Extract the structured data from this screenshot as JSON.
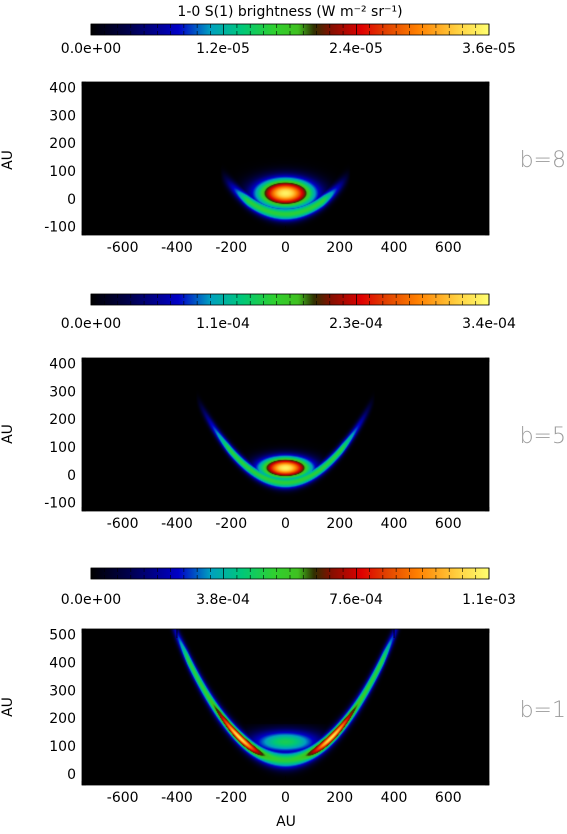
{
  "chart_data": [
    {
      "type": "heatmap",
      "title": "1-0 S(1) brightness (W m⁻² sr⁻¹)",
      "colorbar_ticks": [
        "0.0e+00",
        "1.2e-05",
        "2.4e-05",
        "3.6e-05"
      ],
      "colorbar_max": 3.6e-05,
      "xlabel": "",
      "ylabel": "AU",
      "x_ticks": [
        -600,
        -400,
        -200,
        0,
        200,
        400,
        600
      ],
      "y_ticks": [
        -100,
        0,
        100,
        200,
        300,
        400
      ],
      "xlim": [
        -750,
        750
      ],
      "ylim": [
        -130,
        420
      ],
      "panel_label": "b=8",
      "shape": {
        "apex_y": -55,
        "curvature": 0.0025,
        "shell_width": 18,
        "arm_extent": 240,
        "core_cx": 0,
        "core_cy": 20,
        "core_rx": 105,
        "core_ry": 52,
        "arm_fade": 40
      }
    },
    {
      "type": "heatmap",
      "title": "",
      "colorbar_ticks": [
        "0.0e+00",
        "1.1e-04",
        "2.3e-04",
        "3.4e-04"
      ],
      "colorbar_max": 0.00034,
      "xlabel": "",
      "ylabel": "AU",
      "x_ticks": [
        -600,
        -400,
        -200,
        0,
        200,
        400,
        600
      ],
      "y_ticks": [
        -100,
        0,
        100,
        200,
        300,
        400
      ],
      "xlim": [
        -750,
        750
      ],
      "ylim": [
        -130,
        420
      ],
      "panel_label": "b=5",
      "shape": {
        "apex_y": -28,
        "curvature": 0.0028,
        "shell_width": 16,
        "arm_extent": 330,
        "core_cx": 0,
        "core_cy": 25,
        "core_rx": 95,
        "core_ry": 40,
        "arm_fade": 60
      }
    },
    {
      "type": "heatmap",
      "title": "",
      "colorbar_ticks": [
        "0.0e+00",
        "3.8e-04",
        "7.6e-04",
        "1.1e-03"
      ],
      "colorbar_max": 0.0011,
      "xlabel": "AU",
      "ylabel": "AU",
      "x_ticks": [
        -600,
        -400,
        -200,
        0,
        200,
        400,
        600
      ],
      "y_ticks": [
        0,
        100,
        200,
        300,
        400,
        500
      ],
      "xlim": [
        -750,
        750
      ],
      "ylim": [
        -40,
        520
      ],
      "panel_label": "b=1",
      "shape": {
        "apex_y": 50,
        "curvature": 0.0028,
        "shell_width": 22,
        "arm_extent": 440,
        "core_cx": 0,
        "core_cy": 115,
        "core_rx": 170,
        "core_ry": 55,
        "arm_fade": 20
      }
    }
  ]
}
